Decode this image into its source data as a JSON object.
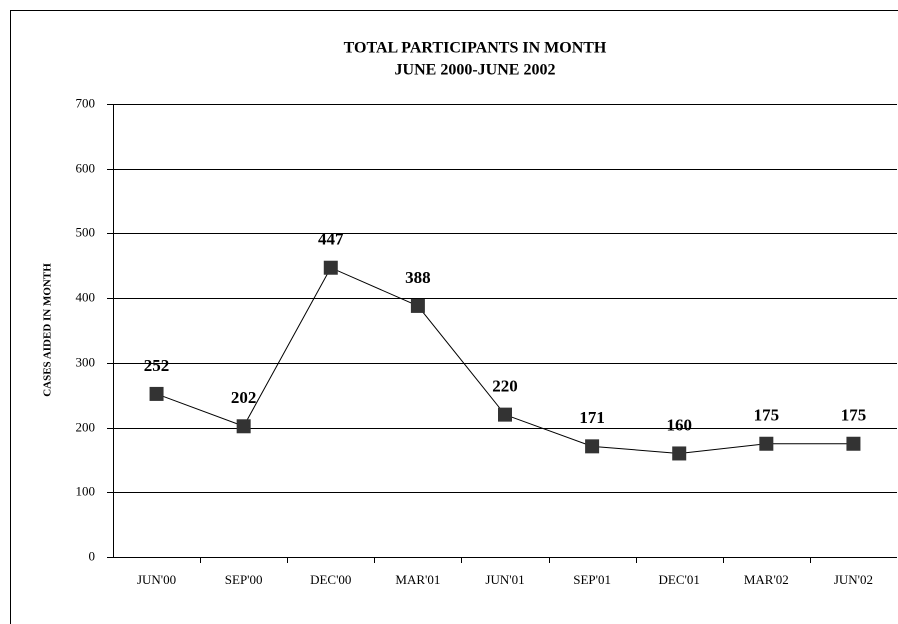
{
  "chart_data": {
    "type": "line",
    "title": "TOTAL PARTICIPANTS IN MONTH",
    "subtitle": "JUNE 2000-JUNE 2002",
    "y_label": "CASES AIDED IN MONTH",
    "categories": [
      "JUN'00",
      "SEP'00",
      "DEC'00",
      "MAR'01",
      "JUN'01",
      "SEP'01",
      "DEC'01",
      "MAR'02",
      "JUN'02"
    ],
    "values": [
      252,
      202,
      447,
      388,
      220,
      171,
      160,
      175,
      175
    ],
    "color": "#333333",
    "ylim": [
      0,
      700
    ],
    "yticks": [
      0,
      100,
      200,
      300,
      400,
      500,
      600,
      700
    ],
    "grid": true
  }
}
